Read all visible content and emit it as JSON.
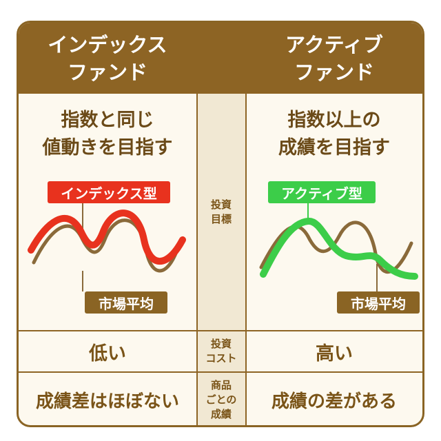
{
  "headers": {
    "index_fund": [
      "インデックス",
      "ファンド"
    ],
    "active_fund": [
      "アクティブ",
      "ファンド"
    ]
  },
  "goal_row": {
    "label": [
      "投資",
      "目標"
    ],
    "index_goal": [
      "指数と同じ",
      "値動きを目指す"
    ],
    "active_goal": [
      "指数以上の",
      "成績を目指す"
    ],
    "index_badge": "インデックス型",
    "active_badge": "アクティブ型",
    "market_badge": "市場平均"
  },
  "cost_row": {
    "label": [
      "投資",
      "コスト"
    ],
    "index_value": "低い",
    "active_value": "高い"
  },
  "performance_row": {
    "label": [
      "商品",
      "ごとの",
      "成績"
    ],
    "index_value": "成績差はほぼない",
    "active_value": "成績の差がある"
  },
  "colors": {
    "brown": "#8d6424",
    "index_red": "#e8321e",
    "active_green": "#3ccd49",
    "market_brown": "#8a6a3a"
  }
}
